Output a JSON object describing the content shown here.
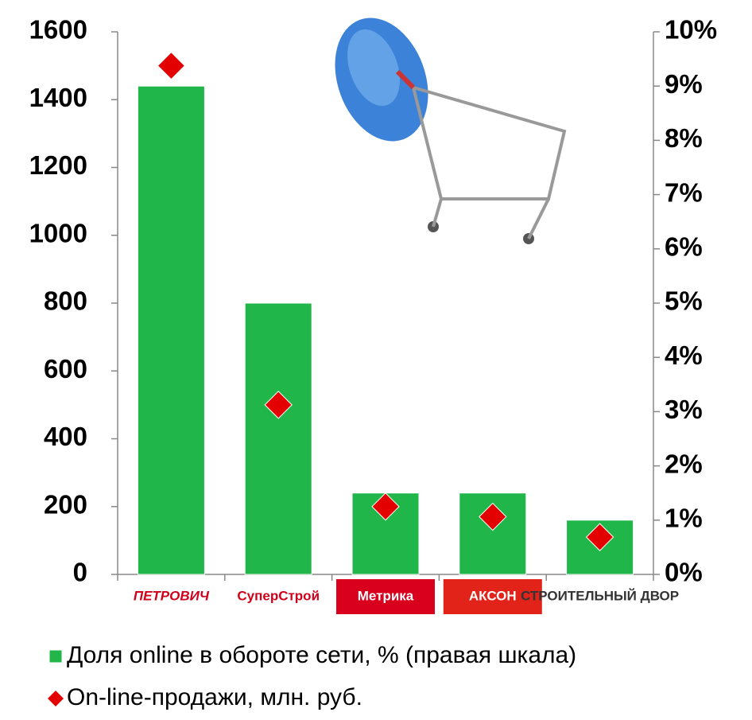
{
  "chart_data": {
    "type": "bar",
    "categories": [
      "ПЕТРОВИЧ",
      "СуперСтрой",
      "Метрика",
      "АКСОН",
      "СТРОИТЕЛЬНЫЙ ДВОР"
    ],
    "series": [
      {
        "name": "Доля online в обороте сети, % (правая шкала)",
        "color": "#20b64a",
        "type": "bar",
        "axis": "y2",
        "values": [
          9,
          5,
          1.5,
          1.5,
          1
        ]
      },
      {
        "name": "On-line-продажи, млн. руб.",
        "color": "#e30000",
        "type": "scatter",
        "axis": "y",
        "values": [
          1500,
          500,
          200,
          170,
          110
        ]
      }
    ],
    "ylim": [
      0,
      1600
    ],
    "yticks": [
      0,
      200,
      400,
      600,
      800,
      1000,
      1200,
      1400,
      1600
    ],
    "y2lim": [
      0,
      10
    ],
    "y2ticks": [
      {
        "value": 0,
        "label": "0%"
      },
      {
        "value": 1,
        "label": "1%"
      },
      {
        "value": 2,
        "label": "2%"
      },
      {
        "value": 3,
        "label": "3%"
      },
      {
        "value": 4,
        "label": "4%"
      },
      {
        "value": 5,
        "label": "5%"
      },
      {
        "value": 6,
        "label": "6%"
      },
      {
        "value": 7,
        "label": "7%"
      },
      {
        "value": 8,
        "label": "8%"
      },
      {
        "value": 9,
        "label": "9%"
      },
      {
        "value": 10,
        "label": "10%"
      }
    ],
    "grid": false
  }
}
